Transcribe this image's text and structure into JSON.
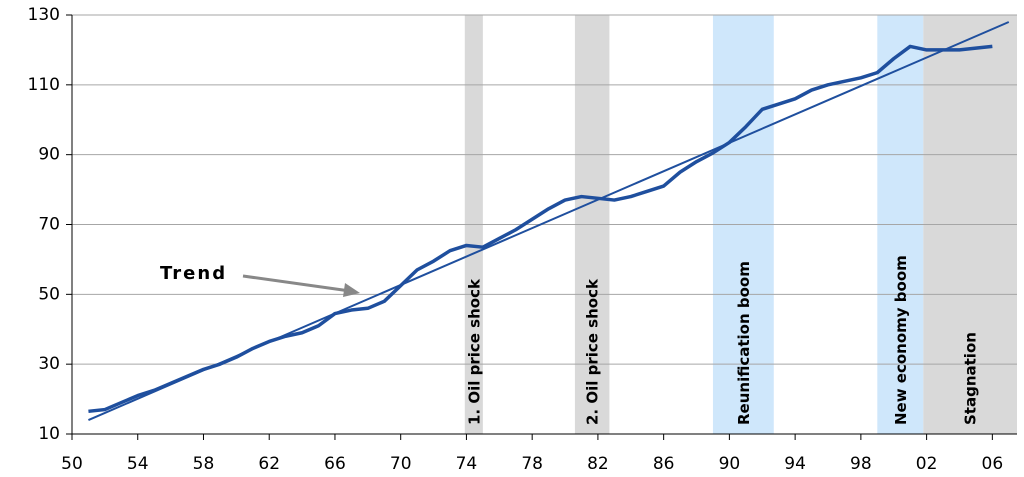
{
  "chart_data": {
    "type": "line",
    "annotation": "Trend",
    "xlim": [
      1950,
      2007.5
    ],
    "xticks": [
      {
        "value": 1950,
        "label": "50"
      },
      {
        "value": 1954,
        "label": "54"
      },
      {
        "value": 1958,
        "label": "58"
      },
      {
        "value": 1962,
        "label": "62"
      },
      {
        "value": 1966,
        "label": "66"
      },
      {
        "value": 1970,
        "label": "70"
      },
      {
        "value": 1974,
        "label": "74"
      },
      {
        "value": 1978,
        "label": "78"
      },
      {
        "value": 1982,
        "label": "82"
      },
      {
        "value": 1986,
        "label": "86"
      },
      {
        "value": 1990,
        "label": "90"
      },
      {
        "value": 1994,
        "label": "94"
      },
      {
        "value": 1998,
        "label": "98"
      },
      {
        "value": 2002,
        "label": "02"
      },
      {
        "value": 2006,
        "label": "06"
      }
    ],
    "ylim": [
      10,
      130
    ],
    "yticks": [
      10,
      30,
      50,
      70,
      90,
      110,
      130
    ],
    "grid": true,
    "periods": [
      {
        "label": "1. Oil price shock",
        "start": 1973.9,
        "end": 1975,
        "color": "#d9d9d9"
      },
      {
        "label": "2. Oil price shock",
        "start": 1980.6,
        "end": 1982.7,
        "color": "#d9d9d9"
      },
      {
        "label": "Reunification boom",
        "start": 1989,
        "end": 1992.7,
        "color": "#cfe7fb"
      },
      {
        "label": "New economy boom",
        "start": 1999,
        "end": 2001.8,
        "color": "#cfe7fb"
      },
      {
        "label": "Stagnation",
        "start": 2001.8,
        "end": 2007.5,
        "color": "#d9d9d9"
      }
    ],
    "series": [
      {
        "color": "#1f4f9e",
        "width": 3.5,
        "x": [
          1951,
          1952,
          1953,
          1954,
          1955,
          1956,
          1957,
          1958,
          1959,
          1960,
          1961,
          1962,
          1963,
          1964,
          1965,
          1966,
          1967,
          1968,
          1969,
          1970,
          1971,
          1972,
          1973,
          1974,
          1975,
          1976,
          1977,
          1978,
          1979,
          1980,
          1981,
          1982,
          1983,
          1984,
          1985,
          1986,
          1987,
          1988,
          1989,
          1990,
          1991,
          1992,
          1993,
          1994,
          1995,
          1996,
          1997,
          1998,
          1999,
          2000,
          2001,
          2002,
          2003,
          2004,
          2005,
          2006
        ],
        "values": [
          16.5,
          17,
          19,
          21,
          22.5,
          24.5,
          26.5,
          28.5,
          30,
          32,
          34.5,
          36.5,
          38,
          39,
          41,
          44.5,
          45.5,
          46,
          48,
          52.5,
          57,
          59.5,
          62.5,
          64,
          63.5,
          66,
          68.5,
          71.5,
          74.5,
          77,
          78,
          77.5,
          77,
          78,
          79.5,
          81,
          85,
          88,
          90.5,
          93.5,
          98,
          103,
          104.5,
          106,
          108.5,
          110,
          111,
          112,
          113.5,
          117.5,
          121,
          120,
          120,
          120,
          120.5,
          121
        ]
      },
      {
        "color": "#1f4f9e",
        "width": 2,
        "x": [
          1951,
          2007
        ],
        "values": [
          14,
          128
        ]
      }
    ]
  }
}
